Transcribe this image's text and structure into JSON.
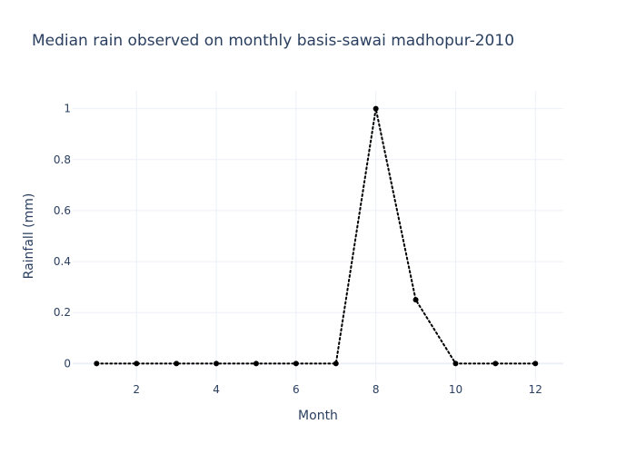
{
  "chart_data": {
    "type": "line",
    "title": "Median rain observed on monthly basis-sawai madhopur-2010",
    "xlabel": "Month",
    "ylabel": "Rainfall (mm)",
    "x": [
      1,
      2,
      3,
      4,
      5,
      6,
      7,
      8,
      9,
      10,
      11,
      12
    ],
    "series": [
      {
        "values": [
          0,
          0,
          0,
          0,
          0,
          0,
          0,
          1,
          0.25,
          0,
          0,
          0
        ]
      }
    ],
    "xticks": [
      2,
      4,
      6,
      8,
      10,
      12
    ],
    "yticks": [
      0,
      0.2,
      0.4,
      0.6,
      0.8,
      1
    ],
    "xlim": [
      0.4,
      12.7
    ],
    "ylim": [
      -0.07,
      1.07
    ],
    "grid": true,
    "line_style": "dotted",
    "line_color": "#000000",
    "marker_color": "#000000"
  }
}
